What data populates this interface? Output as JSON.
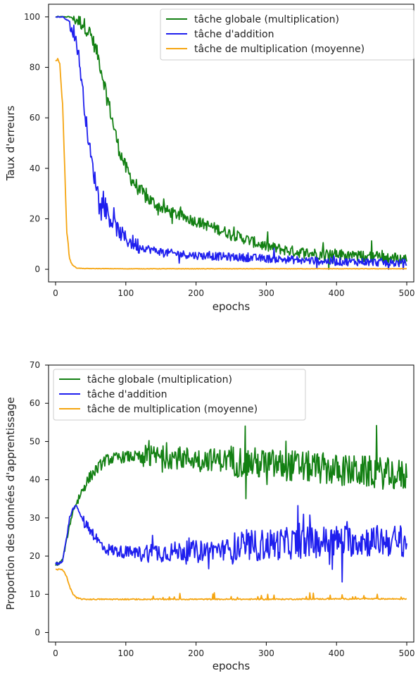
{
  "chart_data": [
    {
      "type": "line",
      "xlabel": "epochs",
      "ylabel": "Taux d'erreurs",
      "xlim": [
        -10,
        510
      ],
      "ylim": [
        -5,
        105
      ],
      "xticks": [
        0,
        100,
        200,
        300,
        400,
        500
      ],
      "yticks": [
        0,
        20,
        40,
        60,
        80,
        100
      ],
      "legend_position": "top-right",
      "grid": false,
      "series": [
        {
          "name": "tâche globale (multiplication)",
          "color": "#138013",
          "x": [
            0,
            20,
            30,
            40,
            50,
            60,
            70,
            80,
            90,
            100,
            110,
            120,
            140,
            160,
            180,
            200,
            220,
            240,
            260,
            280,
            300,
            320,
            340,
            360,
            380,
            400,
            420,
            440,
            460,
            480,
            500
          ],
          "y": [
            100,
            100,
            99,
            97,
            93,
            85,
            73,
            60,
            48,
            40,
            35,
            31,
            26,
            23,
            21,
            19,
            17,
            15,
            13,
            11,
            9,
            8,
            7,
            6.5,
            6,
            6,
            5.5,
            5,
            5,
            4.5,
            4
          ]
        },
        {
          "name": "tâche d'addition",
          "color": "#1f1fee",
          "x": [
            0,
            10,
            20,
            25,
            30,
            35,
            40,
            45,
            50,
            55,
            60,
            70,
            80,
            90,
            100,
            120,
            140,
            160,
            180,
            200,
            240,
            280,
            320,
            360,
            400,
            440,
            480,
            500
          ],
          "y": [
            100,
            100,
            98,
            95,
            90,
            80,
            67,
            55,
            45,
            37,
            31,
            24,
            19,
            15,
            12,
            9,
            7.5,
            6.5,
            6,
            5.5,
            5,
            4.5,
            4,
            3.5,
            3,
            3,
            2.5,
            2.5
          ]
        },
        {
          "name": "tâche de multiplication (moyenne)",
          "color": "#f5a511",
          "x": [
            0,
            3,
            6,
            10,
            13,
            16,
            20,
            25,
            30,
            40,
            100,
            200,
            300,
            400,
            500
          ],
          "y": [
            82,
            84,
            81,
            65,
            40,
            15,
            4,
            1.5,
            0.5,
            0.3,
            0.2,
            0.2,
            0.2,
            0.2,
            0.2
          ]
        }
      ]
    },
    {
      "type": "line",
      "xlabel": "epochs",
      "ylabel": "Proportion des données d'apprentissage",
      "xlim": [
        -10,
        510
      ],
      "ylim": [
        -2.5,
        70
      ],
      "xticks": [
        0,
        100,
        200,
        300,
        400,
        500
      ],
      "yticks": [
        0,
        10,
        20,
        30,
        40,
        50,
        60,
        70
      ],
      "legend_position": "top-left",
      "grid": false,
      "series": [
        {
          "name": "tâche globale (multiplication)",
          "color": "#138013",
          "x": [
            0,
            5,
            10,
            20,
            25,
            30,
            40,
            50,
            60,
            70,
            80,
            100,
            150,
            200,
            250,
            300,
            350,
            400,
            450,
            500
          ],
          "y": [
            18,
            18,
            19,
            28,
            32,
            34,
            38,
            41,
            43,
            45,
            45.5,
            46,
            46,
            45.5,
            45,
            44,
            43.5,
            42.5,
            42,
            41
          ]
        },
        {
          "name": "tâche d'addition",
          "color": "#1f1fee",
          "x": [
            0,
            5,
            10,
            15,
            20,
            25,
            30,
            35,
            40,
            50,
            60,
            70,
            80,
            100,
            150,
            200,
            250,
            300,
            350,
            400,
            450,
            500
          ],
          "y": [
            18,
            18,
            19,
            24,
            30,
            32.5,
            33,
            31,
            29,
            27,
            24,
            22,
            21.5,
            21,
            21,
            21.5,
            22,
            23,
            23.5,
            24,
            24,
            24
          ]
        },
        {
          "name": "tâche de multiplication (moyenne)",
          "color": "#f5a511",
          "x": [
            0,
            10,
            15,
            20,
            25,
            30,
            40,
            100,
            200,
            300,
            400,
            500
          ],
          "y": [
            16.5,
            16.5,
            15,
            12,
            10,
            9,
            8.7,
            8.7,
            8.7,
            8.7,
            8.8,
            8.8
          ]
        }
      ]
    }
  ]
}
